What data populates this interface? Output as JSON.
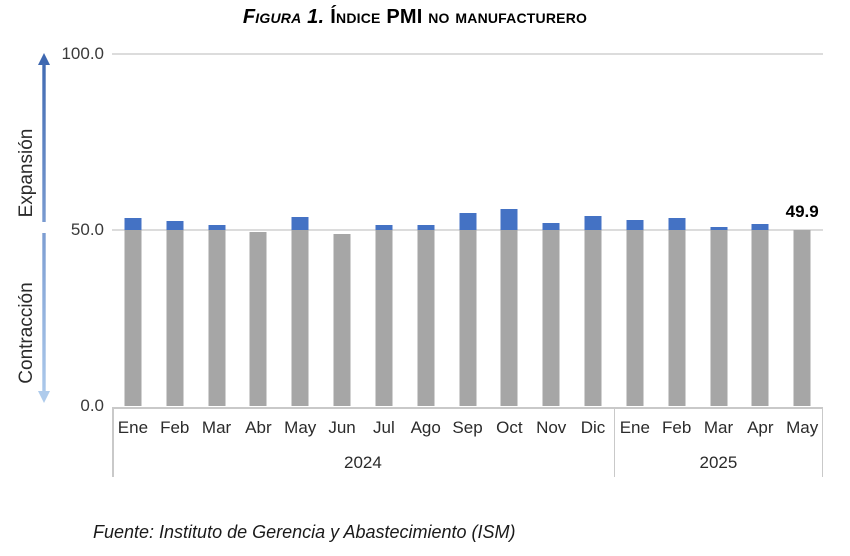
{
  "title": {
    "prefix": "Figura 1.",
    "main": "Índice PMI no manufacturero"
  },
  "y_axis": {
    "ticks": [
      "100.0",
      "50.0",
      "0.0"
    ],
    "upper_label": "Expansión",
    "lower_label": "Contracción"
  },
  "chart_data": {
    "type": "bar",
    "title": "Figura 1. Índice PMI no manufacturero",
    "ylabel": "",
    "xlabel": "",
    "ylim": [
      0,
      100
    ],
    "yticks": [
      0.0,
      50.0,
      100.0
    ],
    "grid": "horizontal gridlines at 50.0 and 100.0 only",
    "threshold": 50,
    "legend": "none",
    "bar_colors": {
      "segment_below_50": "#a6a6a6",
      "segment_above_50": "#4472c4"
    },
    "groups": [
      {
        "year": "2024",
        "categories": [
          "Ene",
          "Feb",
          "Mar",
          "Abr",
          "May",
          "Jun",
          "Jul",
          "Ago",
          "Sep",
          "Oct",
          "Nov",
          "Dic"
        ],
        "values": [
          53.4,
          52.6,
          51.4,
          49.4,
          53.8,
          48.8,
          51.4,
          51.5,
          54.9,
          56.0,
          52.1,
          54.1
        ]
      },
      {
        "year": "2025",
        "categories": [
          "Ene",
          "Feb",
          "Mar",
          "Apr",
          "May"
        ],
        "values": [
          52.8,
          53.5,
          50.8,
          51.6,
          49.9
        ]
      }
    ],
    "annotations": [
      {
        "group": 1,
        "index": 4,
        "text": "49.9"
      }
    ]
  },
  "footer": {
    "source": "Fuente: Instituto de Gerencia y Abastecimiento (ISM)"
  }
}
